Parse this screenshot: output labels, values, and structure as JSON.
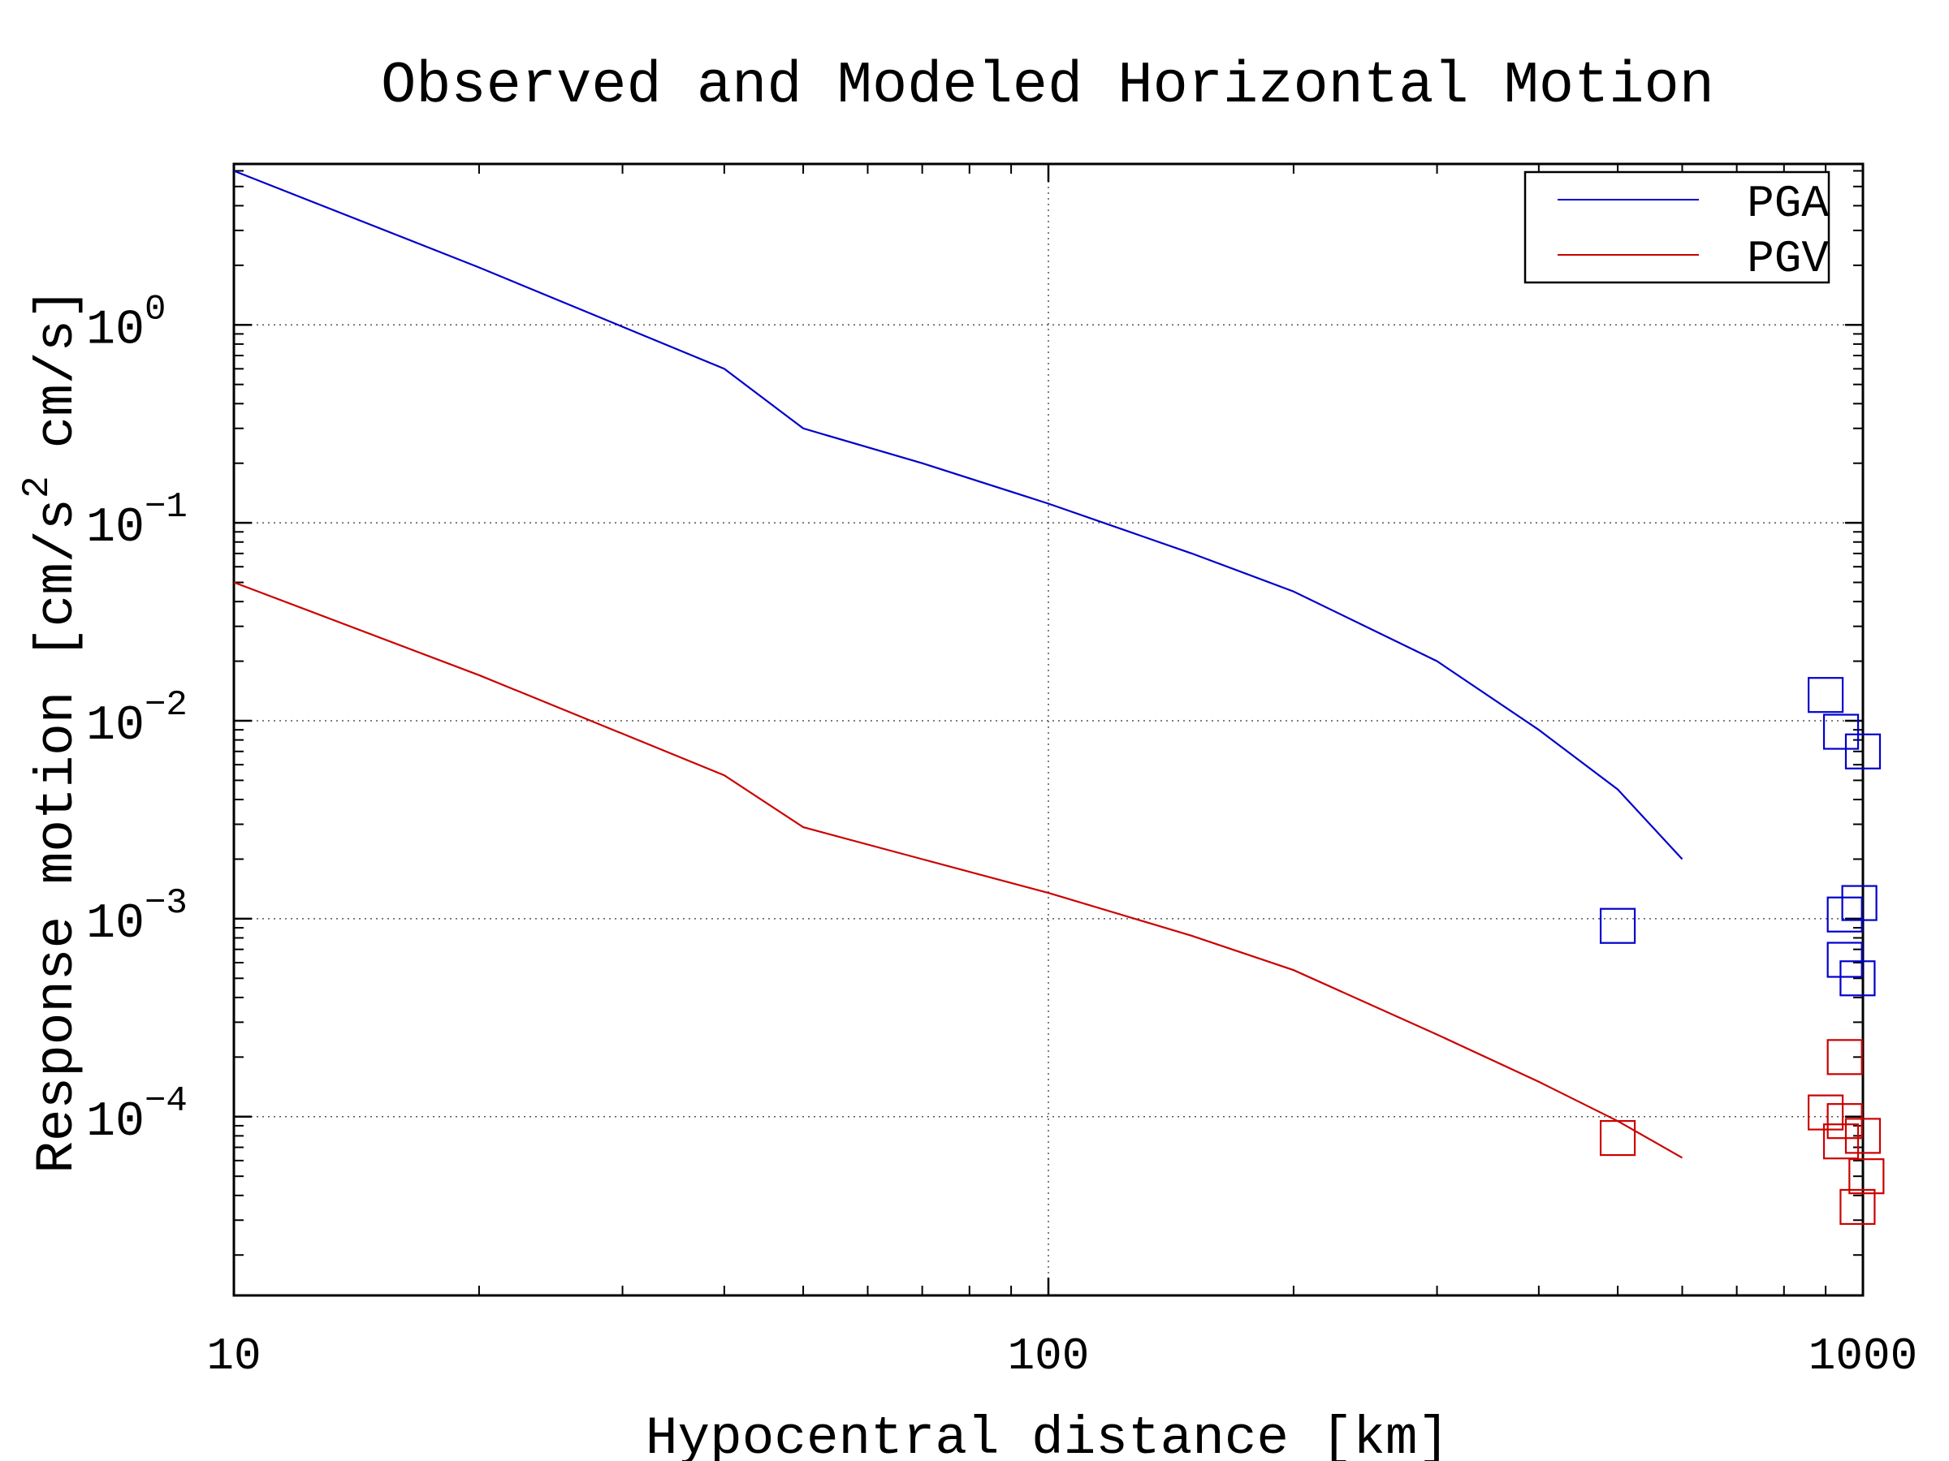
{
  "chart_data": {
    "type": "line",
    "title": "Observed and Modeled Horizontal Motion",
    "xlabel": "Hypocentral distance [km]",
    "ylabel": "Response motion [cm/s",
    "ylabel_sup": "2",
    "ylabel_tail": "cm/s]",
    "xscale": "log",
    "yscale": "log",
    "xlim": [
      10,
      1000
    ],
    "ylim": [
      1.25e-05,
      6.5
    ],
    "grid": "major, dotted",
    "legend_position": "top-right",
    "x_ticks": [
      {
        "value": 10,
        "label": "10"
      },
      {
        "value": 100,
        "label": "100"
      },
      {
        "value": 1000,
        "label": "1000"
      }
    ],
    "y_ticks": [
      {
        "value": 1,
        "base": "10",
        "exp": "0"
      },
      {
        "value": 0.1,
        "base": "10",
        "exp": "−1"
      },
      {
        "value": 0.01,
        "base": "10",
        "exp": "−2"
      },
      {
        "value": 0.001,
        "base": "10",
        "exp": "−3"
      },
      {
        "value": 0.0001,
        "base": "10",
        "exp": "−4"
      }
    ],
    "series": [
      {
        "name": "PGA",
        "color": "#0000cc",
        "style": "line",
        "points": [
          [
            10,
            6.0
          ],
          [
            20,
            1.95
          ],
          [
            40,
            0.6
          ],
          [
            50,
            0.3
          ],
          [
            70,
            0.2
          ],
          [
            100,
            0.125
          ],
          [
            150,
            0.07
          ],
          [
            200,
            0.045
          ],
          [
            300,
            0.02
          ],
          [
            400,
            0.009
          ],
          [
            500,
            0.0045
          ],
          [
            600,
            0.002
          ]
        ]
      },
      {
        "name": "PGV",
        "color": "#cc0000",
        "style": "line",
        "points": [
          [
            10,
            0.05
          ],
          [
            20,
            0.017
          ],
          [
            40,
            0.0053
          ],
          [
            50,
            0.0029
          ],
          [
            70,
            0.002
          ],
          [
            100,
            0.00135
          ],
          [
            150,
            0.00082
          ],
          [
            200,
            0.00055
          ],
          [
            300,
            0.00026
          ],
          [
            400,
            0.00015
          ],
          [
            500,
            9.5e-05
          ],
          [
            600,
            6.2e-05
          ]
        ]
      },
      {
        "legend": false,
        "color": "#0000cc",
        "style": "square-marker",
        "points": [
          [
            500,
            0.00092
          ],
          [
            900,
            0.0135
          ],
          [
            940,
            0.0088
          ],
          [
            1000,
            0.007
          ],
          [
            950,
            0.00105
          ],
          [
            990,
            0.0012
          ],
          [
            950,
            0.00062
          ],
          [
            985,
            0.0005
          ]
        ]
      },
      {
        "legend": false,
        "color": "#cc0000",
        "style": "square-marker",
        "points": [
          [
            500,
            7.8e-05
          ],
          [
            950,
            0.0002
          ],
          [
            900,
            0.000105
          ],
          [
            950,
            9.5e-05
          ],
          [
            940,
            7.5e-05
          ],
          [
            1000,
            8e-05
          ],
          [
            1010,
            5e-05
          ],
          [
            985,
            3.5e-05
          ]
        ]
      }
    ]
  }
}
